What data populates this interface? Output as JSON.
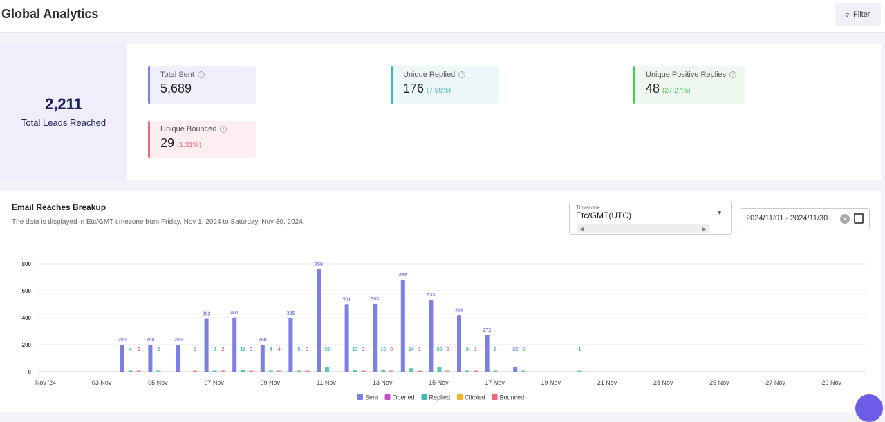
{
  "header": {
    "title": "Global Analytics",
    "filter_label": "Filter"
  },
  "summary": {
    "total_leads": {
      "value": "2,211",
      "label": "Total Leads Reached"
    },
    "cards": [
      {
        "label": "Total Sent",
        "value": "5,689",
        "pct": "",
        "color": "#7b7fe0",
        "bg": "#eeeffb"
      },
      {
        "label": "Unique Replied",
        "value": "176",
        "pct": "(7.96%)",
        "color": "#3bbcb0",
        "bg": "#eef7f8",
        "pctColor": "#3bbcb0"
      },
      {
        "label": "Unique Positive Replies",
        "value": "48",
        "pct": "(27.27%)",
        "color": "#3ecf4f",
        "bg": "#eef8f0",
        "pctColor": "#3ecf4f"
      },
      {
        "label": "Unique Bounced",
        "value": "29",
        "pct": "(1.31%)",
        "color": "#ea6a7a",
        "bg": "#fdeff1",
        "pctColor": "#ea6a7a"
      }
    ]
  },
  "breakup": {
    "title": "Email Reaches Breakup",
    "subtitle": "The data is displayed in Etc/GMT timezone from Friday, Nov 1, 2024 to Saturday, Nov 30, 2024.",
    "timezone_label": "Timezone",
    "timezone_value": "Etc/GMT(UTC)",
    "date_range": "2024/11/01 - 2024/11/30"
  },
  "chart_data": {
    "type": "bar",
    "x": [
      "2024-11-01",
      "2024-11-30"
    ],
    "xticks": [
      "Nov '24",
      "03 Nov",
      "05 Nov",
      "07 Nov",
      "09 Nov",
      "11 Nov",
      "13 Nov",
      "15 Nov",
      "17 Nov",
      "19 Nov",
      "21 Nov",
      "23 Nov",
      "25 Nov",
      "27 Nov",
      "29 Nov"
    ],
    "yticks": [
      "0",
      "200",
      "400",
      "600",
      "800"
    ],
    "ylim": [
      0,
      800
    ],
    "grid": true,
    "legend": "bottom",
    "series": [
      {
        "name": "Sent",
        "color": "#7b7fe6",
        "points": [
          [
            4,
            200
          ],
          [
            5,
            200
          ],
          [
            6,
            200
          ],
          [
            7,
            392
          ],
          [
            8,
            401
          ],
          [
            9,
            200
          ],
          [
            10,
            395
          ],
          [
            11,
            759
          ],
          [
            12,
            501
          ],
          [
            13,
            503
          ],
          [
            14,
            682
          ],
          [
            15,
            533
          ],
          [
            16,
            419
          ],
          [
            17,
            272
          ],
          [
            18,
            32
          ]
        ]
      },
      {
        "name": "Opened",
        "color": "#c04fc7",
        "points": []
      },
      {
        "name": "Replied",
        "color": "#3bbcb0",
        "points": [
          [
            4,
            4
          ],
          [
            5,
            2
          ],
          [
            7,
            8
          ],
          [
            8,
            11
          ],
          [
            9,
            4
          ],
          [
            10,
            5
          ],
          [
            11,
            33
          ],
          [
            12,
            13
          ],
          [
            13,
            16
          ],
          [
            14,
            24
          ],
          [
            15,
            35
          ],
          [
            16,
            8
          ],
          [
            17,
            6
          ],
          [
            18,
            6
          ],
          [
            20,
            1
          ]
        ]
      },
      {
        "name": "Clicked",
        "color": "#f2b321",
        "points": []
      },
      {
        "name": "Bounced",
        "color": "#ea6a7a",
        "points": [
          [
            4,
            2
          ],
          [
            6,
            5
          ],
          [
            7,
            2
          ],
          [
            8,
            3
          ],
          [
            9,
            4
          ],
          [
            10,
            3
          ],
          [
            12,
            3
          ],
          [
            13,
            3
          ],
          [
            14,
            1
          ],
          [
            15,
            2
          ],
          [
            16,
            1
          ]
        ]
      }
    ]
  }
}
